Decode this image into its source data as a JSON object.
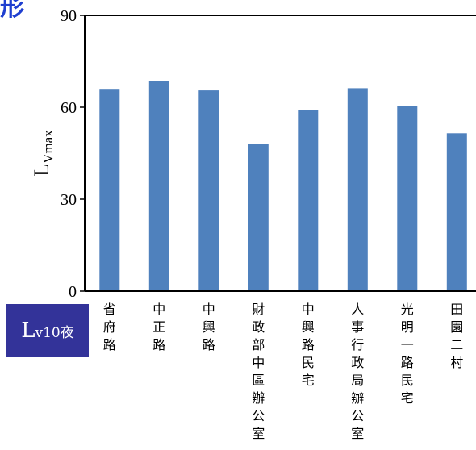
{
  "header": {
    "title_fragment": "形"
  },
  "legend_box": {
    "main": "L",
    "sub": "v10夜"
  },
  "colors": {
    "bar": "#4f81bd",
    "axis": "#000000",
    "legend_bg": "#333399",
    "title": "#1f3fd0"
  },
  "chart_data": {
    "type": "bar",
    "title": "",
    "xlabel": "",
    "ylabel": {
      "main": "L",
      "sub": "Vmax"
    },
    "ylim": [
      0,
      90
    ],
    "yticks": [
      0,
      30,
      60,
      90
    ],
    "grid": false,
    "categories": [
      "省府路",
      "中正路",
      "中興路",
      "財政部中區辦公室",
      "中興路民宅",
      "人事行政局辦公室",
      "光明一路民宅",
      "田園二村"
    ],
    "values": [
      66,
      68.5,
      65.5,
      48,
      59,
      66.2,
      60.5,
      51.5
    ]
  }
}
